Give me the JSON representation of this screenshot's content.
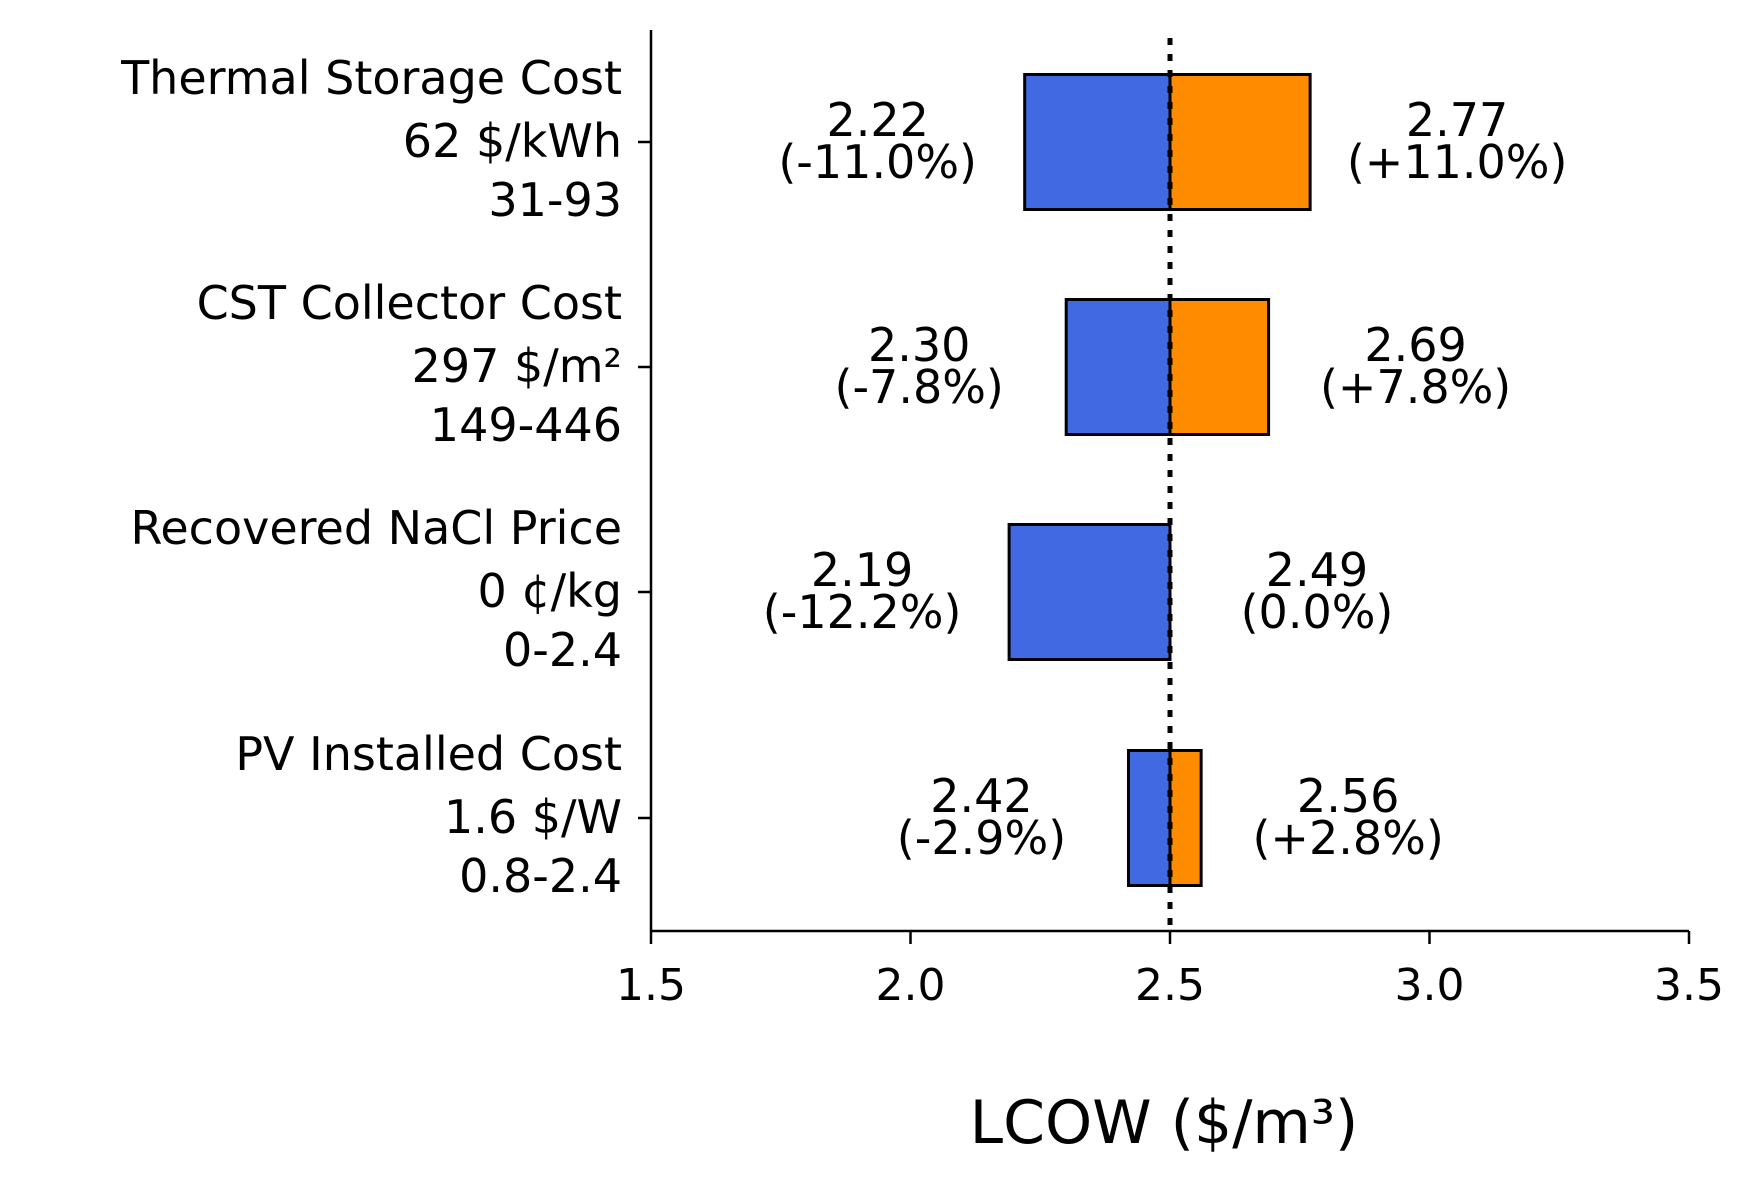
{
  "chart_data": {
    "type": "bar",
    "orientation": "horizontal",
    "subtype": "tornado",
    "title": "",
    "xlabel": "LCOW ($/m³)",
    "ylabel": "",
    "xlim": [
      1.5,
      3.5
    ],
    "x_ticks": [
      "1.5",
      "2.0",
      "2.5",
      "3.0",
      "3.5"
    ],
    "baseline": 2.5,
    "grid": false,
    "legend": "none",
    "colors": {
      "low": "#4169E1",
      "high": "#FF8C00",
      "baseline_line": "#000000"
    },
    "categories": [
      {
        "name": "Thermal Storage Cost",
        "base": "62 $/kWh",
        "range": "31-93",
        "low": {
          "value": 2.22,
          "label": "2.22",
          "pct": "(-11.0%)"
        },
        "high": {
          "value": 2.77,
          "label": "2.77",
          "pct": "(+11.0%)"
        }
      },
      {
        "name": "CST Collector Cost",
        "base": "297 $/m²",
        "range": "149-446",
        "low": {
          "value": 2.3,
          "label": "2.30",
          "pct": "(-7.8%)"
        },
        "high": {
          "value": 2.69,
          "label": "2.69",
          "pct": "(+7.8%)"
        }
      },
      {
        "name": "Recovered NaCl Price",
        "base": "0 ¢/kg",
        "range": "0-2.4",
        "low": {
          "value": 2.19,
          "label": "2.19",
          "pct": "(-12.2%)"
        },
        "high": {
          "value": 2.49,
          "label": "2.49",
          "pct": "(0.0%)"
        }
      },
      {
        "name": "PV Installed Cost",
        "base": "1.6 $/W",
        "range": "0.8-2.4",
        "low": {
          "value": 2.42,
          "label": "2.42",
          "pct": "(-2.9%)"
        },
        "high": {
          "value": 2.56,
          "label": "2.56",
          "pct": "(+2.8%)"
        }
      }
    ]
  }
}
